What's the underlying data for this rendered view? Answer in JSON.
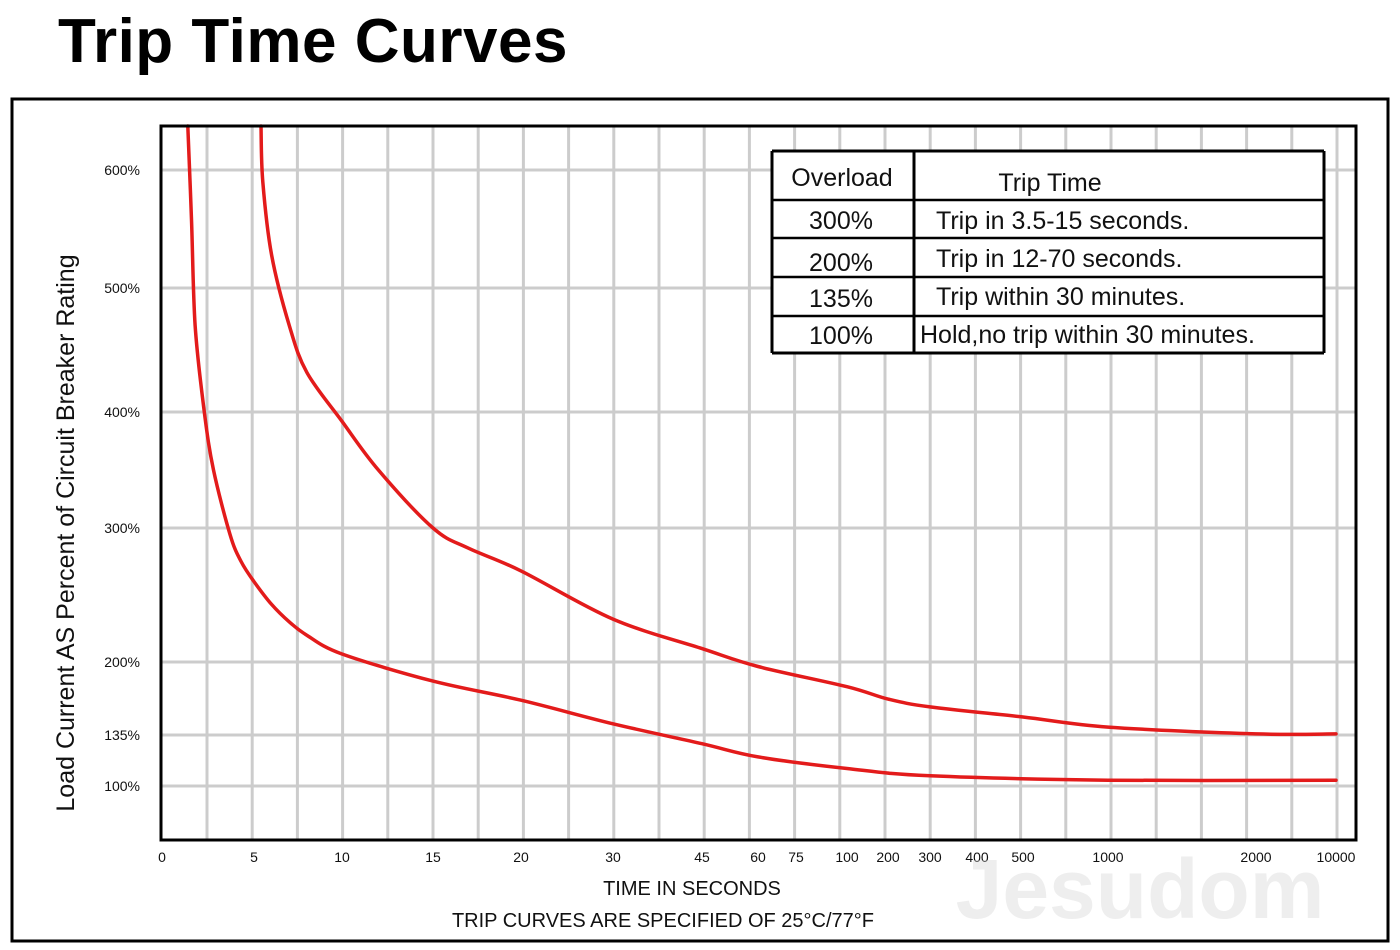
{
  "title": "Trip Time Curves",
  "watermark": "Jesudom",
  "colors": {
    "curve": "#e31b1b",
    "grid": "#cccccc",
    "frame": "#000000"
  },
  "chart_data": {
    "type": "line",
    "title": "Trip Time Curves",
    "xlabel": "TIME IN SECONDS",
    "footnote": "TRIP CURVES ARE SPECIFIED OF 25°C/77°F",
    "ylabel": "Load Current AS Percent of Circuit Breaker Rating",
    "x_ticks": [
      "0",
      "5",
      "10",
      "15",
      "20",
      "30",
      "45",
      "60",
      "75",
      "100",
      "200",
      "300",
      "400",
      "500",
      "1000",
      "2000",
      "10000"
    ],
    "y_ticks": [
      "600%",
      "500%",
      "400%",
      "300%",
      "200%",
      "135%",
      "100%"
    ],
    "y_tick_values": [
      600,
      500,
      400,
      300,
      200,
      135,
      100
    ],
    "ylim": [
      60,
      640
    ],
    "grid": true,
    "series": [
      {
        "values": [
          {
            "x": 1.4,
            "y": 640
          },
          {
            "x": 1.6,
            "y": 560
          },
          {
            "x": 1.8,
            "y": 470
          },
          {
            "x": 2.3,
            "y": 400
          },
          {
            "x": 2.8,
            "y": 350
          },
          {
            "x": 3.7,
            "y": 295
          },
          {
            "x": 4.3,
            "y": 275
          },
          {
            "x": 5,
            "y": 260
          },
          {
            "x": 6,
            "y": 243
          },
          {
            "x": 7,
            "y": 230
          },
          {
            "x": 8,
            "y": 220
          },
          {
            "x": 10,
            "y": 206
          },
          {
            "x": 15,
            "y": 183
          },
          {
            "x": 20,
            "y": 166
          },
          {
            "x": 30,
            "y": 145
          },
          {
            "x": 45,
            "y": 129
          },
          {
            "x": 60,
            "y": 120
          },
          {
            "x": 100,
            "y": 112
          },
          {
            "x": 300,
            "y": 107
          },
          {
            "x": 1000,
            "y": 104
          },
          {
            "x": 10000,
            "y": 104
          }
        ]
      },
      {
        "values": [
          {
            "x": 5.4,
            "y": 640
          },
          {
            "x": 5.5,
            "y": 590
          },
          {
            "x": 6,
            "y": 528
          },
          {
            "x": 7,
            "y": 470
          },
          {
            "x": 8,
            "y": 432
          },
          {
            "x": 10,
            "y": 392
          },
          {
            "x": 12,
            "y": 350
          },
          {
            "x": 15,
            "y": 300
          },
          {
            "x": 17,
            "y": 285
          },
          {
            "x": 20,
            "y": 268
          },
          {
            "x": 30,
            "y": 232
          },
          {
            "x": 45,
            "y": 210
          },
          {
            "x": 60,
            "y": 196
          },
          {
            "x": 100,
            "y": 178
          },
          {
            "x": 200,
            "y": 167
          },
          {
            "x": 300,
            "y": 160
          },
          {
            "x": 500,
            "y": 151
          },
          {
            "x": 1000,
            "y": 142
          },
          {
            "x": 2000,
            "y": 136
          },
          {
            "x": 10000,
            "y": 136
          }
        ]
      }
    ]
  },
  "table": {
    "headers": [
      "Overload",
      "Trip Time"
    ],
    "rows": [
      [
        "300%",
        "Trip in 3.5-15 seconds."
      ],
      [
        "200%",
        "Trip in 12-70 seconds."
      ],
      [
        "135%",
        "Trip within 30 minutes."
      ],
      [
        "100%",
        "Hold,no trip within 30 minutes."
      ]
    ]
  }
}
